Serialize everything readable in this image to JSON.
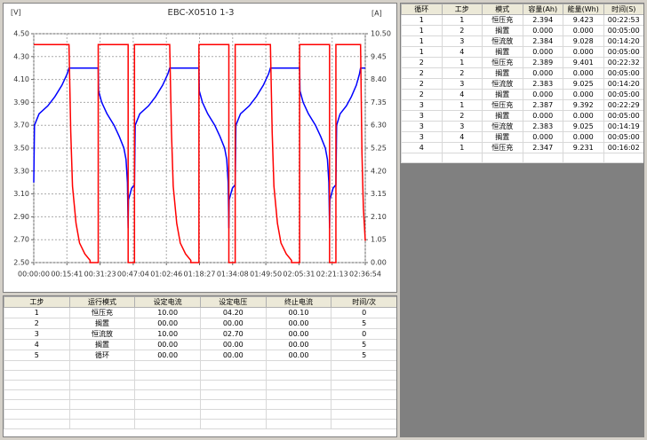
{
  "chart_data": {
    "type": "line",
    "title": "EBC-X0510 1-3",
    "y_label": "[V]",
    "y2_label": "[A]",
    "xlim": [
      0,
      9414
    ],
    "xticks": [
      {
        "value": 0,
        "label": "00:00:00"
      },
      {
        "value": 941,
        "label": "00:15:41"
      },
      {
        "value": 1883,
        "label": "00:31:23"
      },
      {
        "value": 2824,
        "label": "00:47:04"
      },
      {
        "value": 3766,
        "label": "01:02:46"
      },
      {
        "value": 4707,
        "label": "01:18:27"
      },
      {
        "value": 5648,
        "label": "01:34:08"
      },
      {
        "value": 6590,
        "label": "01:49:50"
      },
      {
        "value": 7531,
        "label": "02:05:31"
      },
      {
        "value": 8473,
        "label": "02:21:13"
      },
      {
        "value": 9414,
        "label": "02:36:54"
      }
    ],
    "ylim": [
      2.5,
      4.5
    ],
    "yticks": [
      {
        "value": 2.5,
        "label": "2.50"
      },
      {
        "value": 2.7,
        "label": "2.70"
      },
      {
        "value": 2.9,
        "label": "2.90"
      },
      {
        "value": 3.1,
        "label": "3.10"
      },
      {
        "value": 3.3,
        "label": "3.30"
      },
      {
        "value": 3.5,
        "label": "3.50"
      },
      {
        "value": 3.7,
        "label": "3.70"
      },
      {
        "value": 3.9,
        "label": "3.90"
      },
      {
        "value": 4.1,
        "label": "4.10"
      },
      {
        "value": 4.3,
        "label": "4.30"
      },
      {
        "value": 4.5,
        "label": "4.50"
      }
    ],
    "y2lim": [
      0,
      10.5
    ],
    "y2ticks": [
      {
        "value": 0,
        "label": "0.00"
      },
      1.05,
      {
        "value": 2.1,
        "label": "2.10"
      },
      3.15,
      {
        "value": 4.2,
        "label": "4.20"
      },
      5.25,
      {
        "value": 6.3,
        "label": "6.30"
      },
      7.35,
      {
        "value": 8.4,
        "label": "8.40"
      },
      9.45,
      {
        "value": 10.5,
        "label": "10.50"
      }
    ],
    "grid": true,
    "series": [
      {
        "color": "#0000ff",
        "axis": "y",
        "x": [
          0,
          20,
          150,
          400,
          600,
          800,
          950,
          1000,
          1830,
          1840,
          1930,
          2080,
          2280,
          2430,
          2560,
          2620,
          2660,
          2680,
          2690,
          2780,
          2860,
          2880,
          3010,
          3260,
          3460,
          3660,
          3810,
          3860,
          4690,
          4700,
          4790,
          4940,
          5140,
          5290,
          5420,
          5480,
          5520,
          5540,
          5550,
          5640,
          5720,
          5740,
          5870,
          6120,
          6320,
          6520,
          6670,
          6720,
          7550,
          7560,
          7650,
          7800,
          8000,
          8150,
          8280,
          8340,
          8380,
          8400,
          8410,
          8500,
          8580,
          8600,
          8700,
          8880,
          9020,
          9160,
          9250,
          9280,
          9414
        ],
        "values": [
          3.2,
          3.7,
          3.8,
          3.87,
          3.95,
          4.05,
          4.15,
          4.2,
          4.2,
          4.0,
          3.9,
          3.8,
          3.7,
          3.6,
          3.5,
          3.4,
          3.2,
          2.8,
          3.05,
          3.15,
          3.18,
          3.7,
          3.8,
          3.87,
          3.95,
          4.05,
          4.15,
          4.2,
          4.2,
          4.0,
          3.9,
          3.8,
          3.7,
          3.6,
          3.5,
          3.4,
          3.2,
          2.8,
          3.05,
          3.15,
          3.18,
          3.7,
          3.8,
          3.87,
          3.95,
          4.05,
          4.15,
          4.2,
          4.2,
          4.0,
          3.9,
          3.8,
          3.7,
          3.6,
          3.5,
          3.4,
          3.2,
          2.8,
          3.05,
          3.15,
          3.18,
          3.7,
          3.8,
          3.87,
          3.95,
          4.05,
          4.15,
          4.2,
          4.2
        ]
      },
      {
        "color": "#ff0000",
        "axis": "y2",
        "x": [
          0,
          1000,
          1050,
          1100,
          1200,
          1300,
          1450,
          1600,
          1600,
          1830,
          1830,
          2680,
          2680,
          2860,
          2860,
          3860,
          3910,
          3960,
          4060,
          4160,
          4310,
          4460,
          4460,
          4690,
          4690,
          5540,
          5540,
          5720,
          5720,
          6720,
          6770,
          6820,
          6920,
          7020,
          7170,
          7320,
          7320,
          7550,
          7550,
          8400,
          8400,
          8580,
          8580,
          9280,
          9320,
          9360,
          9414
        ],
        "values": [
          10.0,
          10.0,
          6.0,
          3.5,
          1.8,
          0.9,
          0.4,
          0.1,
          0,
          0,
          10.0,
          10.0,
          0,
          0,
          10.0,
          10.0,
          6.0,
          3.5,
          1.8,
          0.9,
          0.4,
          0.1,
          0,
          0,
          10.0,
          10.0,
          0,
          0,
          10.0,
          10.0,
          6.0,
          3.5,
          1.8,
          0.9,
          0.4,
          0.1,
          0,
          0,
          10.0,
          10.0,
          0,
          0,
          10.0,
          10.0,
          5.0,
          2.5,
          1.0
        ]
      }
    ]
  },
  "step_table": {
    "header": [
      "工步",
      "运行模式",
      "设定电流",
      "设定电压",
      "终止电流",
      "时间/次"
    ],
    "rows": [
      [
        "1",
        "恒压充",
        "10.00",
        "04.20",
        "00.10",
        "0"
      ],
      [
        "2",
        "搁置",
        "00.00",
        "00.00",
        "00.00",
        "5"
      ],
      [
        "3",
        "恒流放",
        "10.00",
        "02.70",
        "00.00",
        "0"
      ],
      [
        "4",
        "搁置",
        "00.00",
        "00.00",
        "00.00",
        "5"
      ],
      [
        "5",
        "循环",
        "00.00",
        "00.00",
        "00.00",
        "5"
      ]
    ]
  },
  "record_table": {
    "header": [
      "循环",
      "工步",
      "模式",
      "容量(Ah)",
      "能量(Wh)",
      "时间(S)"
    ],
    "rows": [
      [
        "1",
        "1",
        "恒压充",
        "2.394",
        "9.423",
        "00:22:53"
      ],
      [
        "1",
        "2",
        "搁置",
        "0.000",
        "0.000",
        "00:05:00"
      ],
      [
        "1",
        "3",
        "恒流放",
        "2.384",
        "9.028",
        "00:14:20"
      ],
      [
        "1",
        "4",
        "搁置",
        "0.000",
        "0.000",
        "00:05:00"
      ],
      [
        "2",
        "1",
        "恒压充",
        "2.389",
        "9.401",
        "00:22:32"
      ],
      [
        "2",
        "2",
        "搁置",
        "0.000",
        "0.000",
        "00:05:00"
      ],
      [
        "2",
        "3",
        "恒流放",
        "2.383",
        "9.025",
        "00:14:20"
      ],
      [
        "2",
        "4",
        "搁置",
        "0.000",
        "0.000",
        "00:05:00"
      ],
      [
        "3",
        "1",
        "恒压充",
        "2.387",
        "9.392",
        "00:22:29"
      ],
      [
        "3",
        "2",
        "搁置",
        "0.000",
        "0.000",
        "00:05:00"
      ],
      [
        "3",
        "3",
        "恒流放",
        "2.383",
        "9.025",
        "00:14:19"
      ],
      [
        "3",
        "4",
        "搁置",
        "0.000",
        "0.000",
        "00:05:00"
      ],
      [
        "4",
        "1",
        "恒压充",
        "2.347",
        "9.231",
        "00:16:02"
      ]
    ]
  }
}
